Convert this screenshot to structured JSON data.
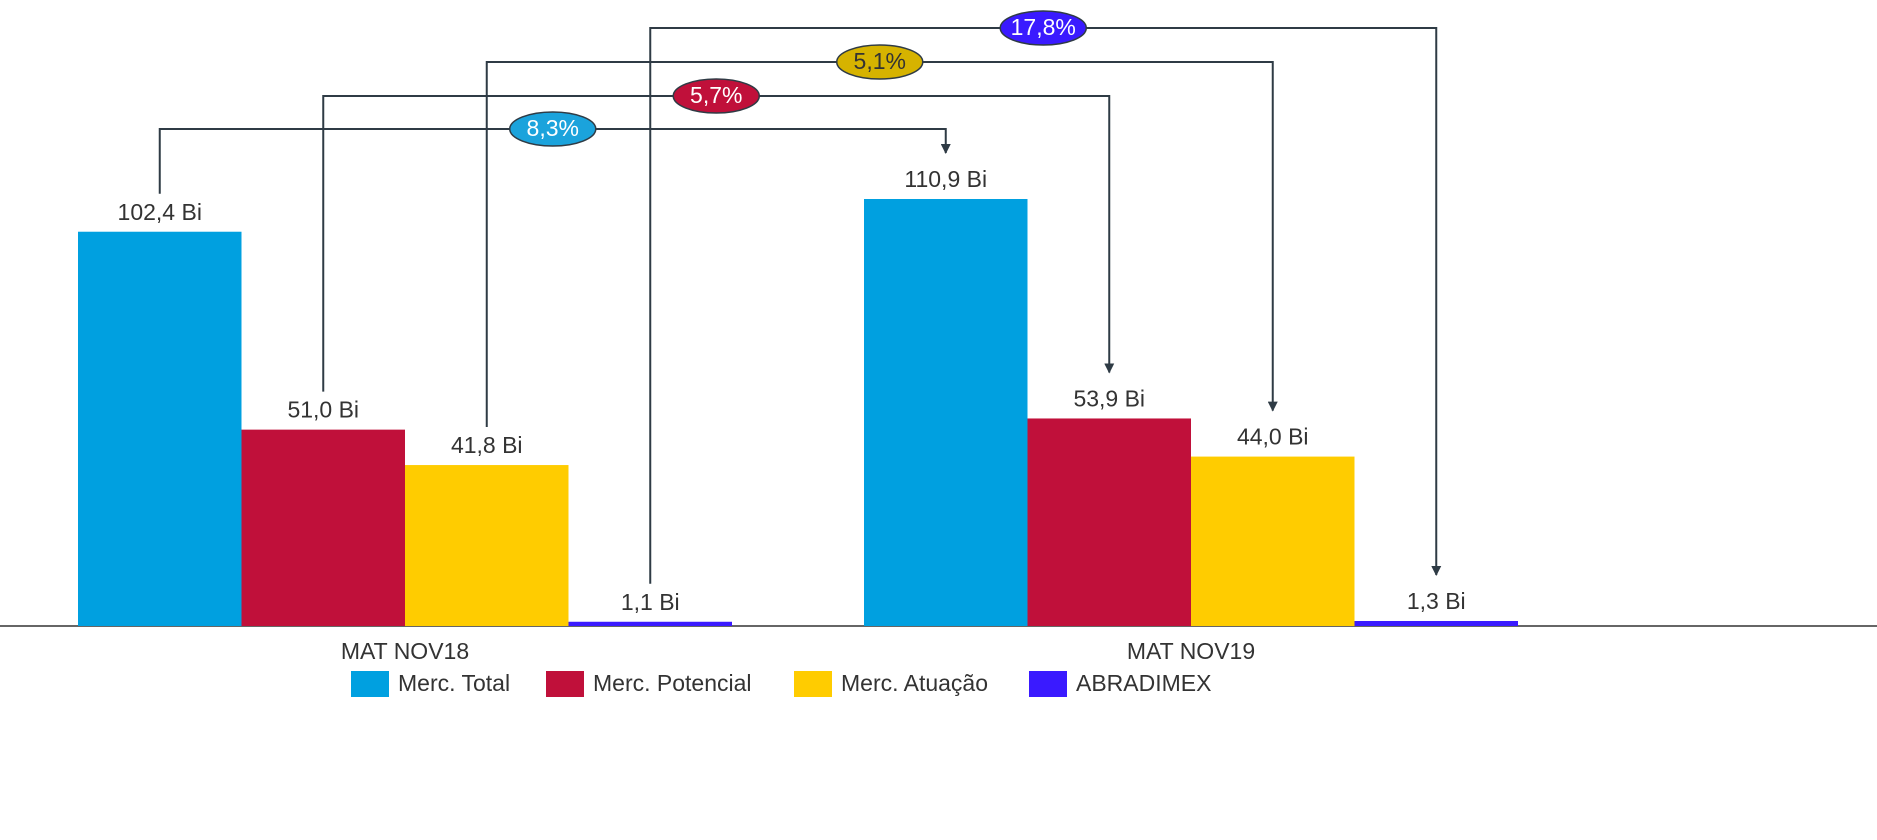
{
  "chart_data": {
    "type": "bar",
    "categories": [
      "MAT NOV18",
      "MAT NOV19"
    ],
    "series": [
      {
        "name": "Merc. Total",
        "color": "#00a0e0",
        "values": [
          102.4,
          110.9
        ],
        "value_labels": [
          "102,4 Bi",
          "110,9 Bi"
        ],
        "growth_label": "8,3%",
        "growth_color": "#1ba3dc"
      },
      {
        "name": "Merc. Potencial",
        "color": "#c0103a",
        "values": [
          51.0,
          53.9
        ],
        "value_labels": [
          "51,0 Bi",
          "53,9 Bi"
        ],
        "growth_label": "5,7%",
        "growth_color": "#c0103a"
      },
      {
        "name": "Merc. Atuação",
        "color": "#ffcc00",
        "values": [
          41.8,
          44.0
        ],
        "value_labels": [
          "41,8 Bi",
          "44,0 Bi"
        ],
        "growth_label": "5,1%",
        "growth_color": "#d6b300"
      },
      {
        "name": "ABRADIMEX",
        "color": "#3a1aff",
        "values": [
          1.1,
          1.3
        ],
        "value_labels": [
          "1,1 Bi",
          "1,3 Bi"
        ],
        "growth_label": "17,8%",
        "growth_color": "#3a1aff"
      }
    ]
  }
}
